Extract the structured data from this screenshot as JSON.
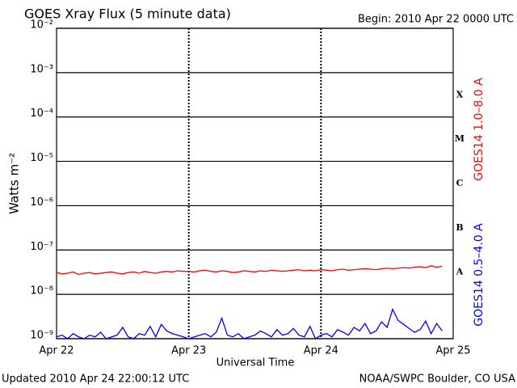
{
  "chart_data": {
    "type": "line",
    "title": "GOES Xray Flux (5 minute data)",
    "subtitle": "Begin:  2010 Apr 22 0000 UTC",
    "y_label": "Watts m⁻²",
    "x_label": "Universal Time",
    "footer_left": "Updated 2010 Apr 24 22:00:12 UTC",
    "footer_right": "NOAA/SWPC Boulder, CO USA",
    "flare_classes": [
      "A",
      "B",
      "C",
      "M",
      "X"
    ],
    "log_y": true,
    "grid": true,
    "xlim": [
      0,
      3
    ],
    "xticks": [
      {
        "value": 0,
        "label": "Apr 22"
      },
      {
        "value": 1,
        "label": "Apr 23"
      },
      {
        "value": 2,
        "label": "Apr 24"
      },
      {
        "value": 3,
        "label": "Apr 25"
      }
    ],
    "ylim": [
      1e-09,
      0.01
    ],
    "yticks": [
      {
        "value": 1e-09,
        "label": "10⁻⁹"
      },
      {
        "value": 1e-08,
        "label": "10⁻⁸"
      },
      {
        "value": 1e-07,
        "label": "10⁻⁷"
      },
      {
        "value": 1e-06,
        "label": "10⁻⁶"
      },
      {
        "value": 1e-05,
        "label": "10⁻⁵"
      },
      {
        "value": 0.0001,
        "label": "10⁻⁴"
      },
      {
        "value": 0.001,
        "label": "10⁻³"
      },
      {
        "value": 0.01,
        "label": "10⁻²"
      }
    ],
    "x": [
      0,
      0.042,
      0.083,
      0.125,
      0.167,
      0.208,
      0.25,
      0.292,
      0.333,
      0.375,
      0.417,
      0.458,
      0.5,
      0.542,
      0.583,
      0.625,
      0.667,
      0.708,
      0.75,
      0.792,
      0.833,
      0.875,
      0.917,
      0.958,
      1,
      1.042,
      1.083,
      1.125,
      1.167,
      1.208,
      1.25,
      1.292,
      1.333,
      1.375,
      1.417,
      1.458,
      1.5,
      1.542,
      1.583,
      1.625,
      1.667,
      1.708,
      1.75,
      1.792,
      1.833,
      1.875,
      1.917,
      1.958,
      2,
      2.042,
      2.083,
      2.125,
      2.167,
      2.208,
      2.25,
      2.292,
      2.333,
      2.375,
      2.417,
      2.458,
      2.5,
      2.542,
      2.583,
      2.625,
      2.667,
      2.708,
      2.75,
      2.792,
      2.833,
      2.875,
      2.917
    ],
    "series": [
      {
        "name": "GOES14 1.0–8.0 A",
        "color": "#ff0000",
        "values": [
          3.1e-08,
          2.9e-08,
          3e-08,
          3.2e-08,
          2.8e-08,
          3e-08,
          3.1e-08,
          2.9e-08,
          3e-08,
          3.1e-08,
          3.2e-08,
          3e-08,
          2.9e-08,
          3.1e-08,
          3.2e-08,
          3e-08,
          3.3e-08,
          3.1e-08,
          3e-08,
          3.2e-08,
          3.3e-08,
          3.2e-08,
          3.4e-08,
          3.3e-08,
          3.3e-08,
          3.2e-08,
          3.4e-08,
          3.5e-08,
          3.3e-08,
          3.2e-08,
          3.4e-08,
          3.3e-08,
          3.1e-08,
          3.2e-08,
          3.4e-08,
          3.3e-08,
          3.2e-08,
          3.4e-08,
          3.3e-08,
          3.5e-08,
          3.4e-08,
          3.3e-08,
          3.4e-08,
          3.5e-08,
          3.6e-08,
          3.4e-08,
          3.5e-08,
          3.4e-08,
          3.6e-08,
          3.5e-08,
          3.4e-08,
          3.6e-08,
          3.7e-08,
          3.5e-08,
          3.6e-08,
          3.7e-08,
          3.8e-08,
          3.7e-08,
          3.6e-08,
          3.8e-08,
          3.9e-08,
          3.8e-08,
          3.9e-08,
          4e-08,
          3.9e-08,
          4.1e-08,
          4.2e-08,
          4e-08,
          4.4e-08,
          4.1e-08,
          4.3e-08
        ]
      },
      {
        "name": "GOES14 0.5–4.0 A",
        "color": "#0000ff",
        "values": [
          1.1e-09,
          1.2e-09,
          1e-09,
          1.3e-09,
          1.1e-09,
          1e-09,
          1.2e-09,
          1.1e-09,
          1.4e-09,
          1e-09,
          1.1e-09,
          1.2e-09,
          1.8e-09,
          1.1e-09,
          1e-09,
          1.3e-09,
          1.2e-09,
          1.9e-09,
          1.1e-09,
          2.1e-09,
          1.5e-09,
          1.3e-09,
          1.2e-09,
          1.1e-09,
          1e-09,
          1.1e-09,
          1.2e-09,
          1.3e-09,
          1.1e-09,
          1.4e-09,
          2.9e-09,
          1.2e-09,
          1.1e-09,
          1.3e-09,
          1e-09,
          1.1e-09,
          1.2e-09,
          1.5e-09,
          1.3e-09,
          1.1e-09,
          1.6e-09,
          1.2e-09,
          1.3e-09,
          1.7e-09,
          1.2e-09,
          1.1e-09,
          1.9e-09,
          1e-09,
          1.2e-09,
          1.3e-09,
          1.1e-09,
          1.6e-09,
          1.4e-09,
          1.2e-09,
          1.8e-09,
          1.5e-09,
          2.2e-09,
          1.3e-09,
          1.5e-09,
          2.4e-09,
          1.8e-09,
          4.6e-09,
          2.6e-09,
          2.1e-09,
          1.7e-09,
          1.4e-09,
          1.6e-09,
          2.5e-09,
          1.3e-09,
          2.2e-09,
          1.5e-09
        ]
      }
    ]
  }
}
